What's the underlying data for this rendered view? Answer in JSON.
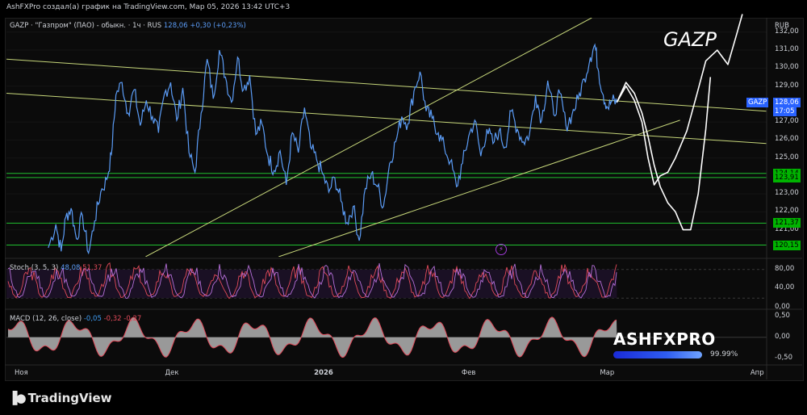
{
  "header": {
    "author_line": "AshFXPro создал(а) график на TradingView.com, Мар 05, 2026 13:42 UTC+3",
    "symbol_line": "GAZP · \"Газпром\" (ПАО) - обыкн. · 1ч · RUS",
    "price": "128,06",
    "change": "+0,30 (+0,23%)",
    "currency": "RUB",
    "symbol_annotation": "GAZP"
  },
  "chart_data": [
    {
      "type": "line",
      "name": "price",
      "title": "GAZP · \"Газпром\" (ПАО) - обыкн. · 1ч · RUS",
      "ylim": [
        119.5,
        132.8
      ],
      "y_ticks": [
        "132,00",
        "131,00",
        "130,00",
        "129,00",
        "127,00",
        "126,00",
        "125,00",
        "123,00",
        "122,00",
        "121,00"
      ],
      "x_range": [
        0,
        100
      ],
      "x_ticks": [
        {
          "label": "Ноя",
          "x": 0,
          "bold": false
        },
        {
          "label": "Дек",
          "x": 19.8,
          "bold": false
        },
        {
          "label": "2026",
          "x": 39.4,
          "bold": true
        },
        {
          "label": "Фев",
          "x": 58.8,
          "bold": false
        },
        {
          "label": "Мар",
          "x": 77.0,
          "bold": false
        },
        {
          "label": "Апр",
          "x": 96.8,
          "bold": false
        }
      ],
      "series": [
        {
          "x": [
            5.5,
            6.5,
            7.2,
            7.8,
            8.5,
            9.2,
            10.0,
            10.8,
            11.6,
            12.4,
            13.2,
            13.8,
            14.4,
            15.2,
            16.0,
            16.8,
            17.6,
            18.4,
            19.2,
            20.0,
            20.8,
            21.6,
            22.4,
            23.2,
            24.0,
            24.8,
            25.6,
            26.4,
            27.2,
            28.0,
            28.8,
            29.6,
            30.4,
            31.2,
            32.0,
            32.8,
            33.6,
            34.4,
            35.2,
            36.0,
            36.8,
            37.6,
            38.4,
            39.2,
            40.0,
            40.8,
            41.6,
            42.4,
            43.2,
            44.0,
            44.8,
            45.6,
            46.4,
            47.2,
            48.0,
            48.8,
            49.6,
            50.4,
            51.2,
            52.0,
            52.8,
            53.6,
            54.4,
            55.2,
            56.0,
            56.8,
            57.6,
            58.4,
            59.2,
            60.0,
            60.8,
            61.6,
            62.4,
            63.2,
            64.0,
            64.8,
            65.6,
            66.4,
            67.2,
            68.0,
            68.8,
            69.6,
            70.4,
            71.2,
            72.0,
            72.8,
            73.6,
            74.4,
            75.2,
            76.0,
            76.8,
            77.4,
            77.9,
            78.5,
            79.1,
            79.7,
            80.3
          ],
          "values": [
            120.0,
            121.3,
            119.8,
            121.7,
            122.2,
            120.5,
            121.8,
            119.7,
            121.5,
            123.1,
            123.8,
            125.2,
            128.5,
            129.2,
            127.5,
            128.8,
            126.8,
            128.2,
            127.3,
            126.4,
            128.6,
            129.2,
            127.1,
            128.9,
            125.3,
            124.2,
            127.5,
            130.5,
            128.3,
            131.0,
            129.5,
            128.1,
            130.6,
            128.8,
            129.6,
            126.3,
            126.9,
            125.1,
            124.3,
            125.4,
            123.5,
            126.4,
            125.3,
            127.8,
            125.6,
            124.9,
            124.1,
            123.1,
            123.9,
            122.6,
            121.4,
            122.3,
            120.4,
            123.3,
            124.1,
            123.4,
            122.3,
            124.7,
            125.9,
            127.3,
            126.9,
            128.7,
            129.8,
            127.6,
            127.2,
            126.4,
            125.6,
            124.8,
            123.4,
            124.7,
            126.2,
            127.1,
            125.1,
            126.6,
            125.8,
            126.5,
            125.6,
            127.6,
            126.6,
            125.9,
            126.3,
            128.5,
            127.1,
            129.3,
            127.4,
            128.6,
            126.8,
            127.4,
            128.3,
            129.4,
            130.6,
            131.3,
            129.8,
            128.5,
            127.8,
            128.2,
            128.06
          ],
          "color": "#5b9cf6"
        }
      ],
      "horizontal_levels": [
        {
          "value": 124.14,
          "label": "124,14"
        },
        {
          "value": 123.91,
          "label": "123,91"
        },
        {
          "value": 121.37,
          "label": "121,37"
        },
        {
          "value": 120.15,
          "label": "120,15"
        }
      ],
      "last_price": {
        "symbol": "GAZP",
        "value": "128,06",
        "time": "17:05"
      },
      "trendlines": [
        {
          "x": [
            0,
            100
          ],
          "y": [
            128.6,
            125.8
          ]
        },
        {
          "x": [
            0,
            100
          ],
          "y": [
            130.5,
            127.6
          ]
        },
        {
          "x": [
            18.3,
            77.0
          ],
          "y": [
            119.5,
            132.8
          ]
        },
        {
          "x": [
            35.8,
            88.6
          ],
          "y": [
            119.5,
            127.1
          ]
        }
      ],
      "drawn_paths": [
        {
          "x": [
            80.3,
            81.5,
            82.6,
            83.6,
            84.4,
            85.2,
            86.0,
            87.0,
            88.0,
            89.0,
            90.0,
            91.0,
            92.0,
            92.6
          ],
          "y": [
            128.1,
            129.2,
            128.6,
            127.5,
            126.2,
            124.6,
            123.4,
            122.5,
            122.0,
            121.0,
            121.0,
            123.0,
            126.6,
            129.5
          ]
        },
        {
          "x": [
            80.3,
            81.5,
            82.6,
            83.6,
            84.4,
            85.2,
            86.0,
            87.0,
            88.0,
            89.5,
            90.8,
            92.0,
            93.5,
            94.9,
            96.0,
            96.8
          ],
          "y": [
            128.1,
            129.0,
            128.2,
            127.0,
            125.0,
            123.5,
            124.0,
            124.2,
            125.0,
            126.5,
            128.5,
            130.4,
            131.0,
            130.2,
            131.8,
            133.0
          ]
        }
      ]
    },
    {
      "type": "line",
      "name": "stoch",
      "title": "Stoch (3, 5, 3)",
      "ylim": [
        0,
        100
      ],
      "y_ticks": [
        "80,00",
        "40,00",
        "0,00"
      ],
      "levels": [
        80,
        20
      ],
      "series": [
        {
          "name": "48,08",
          "color": "#5b9cf6"
        },
        {
          "name": "51,37",
          "color": "#e24a5a"
        }
      ]
    },
    {
      "type": "area",
      "name": "macd",
      "title": "MACD (12, 26, close)",
      "ylim": [
        -0.6,
        0.65
      ],
      "y_ticks": [
        "0,50",
        "0,00",
        "-0,50"
      ],
      "series": [
        {
          "name": "-0,05",
          "color": "#3e9bf1"
        },
        {
          "name": "-0,32",
          "color": "#e24a5a"
        },
        {
          "name": "-0,27",
          "color": "#e24a5a"
        }
      ]
    }
  ],
  "watermark": {
    "title": "ASHFXPRO",
    "percent": "99.99%"
  },
  "footer": {
    "brand": "TradingView"
  },
  "colors": {
    "price": "#5b9cf6",
    "trendline": "#c6d67a",
    "levels": "#1fbf2f",
    "stoch_k": "#5b9cf6",
    "stoch_d": "#e24a5a",
    "macd_hist": "#c9c9c9"
  }
}
